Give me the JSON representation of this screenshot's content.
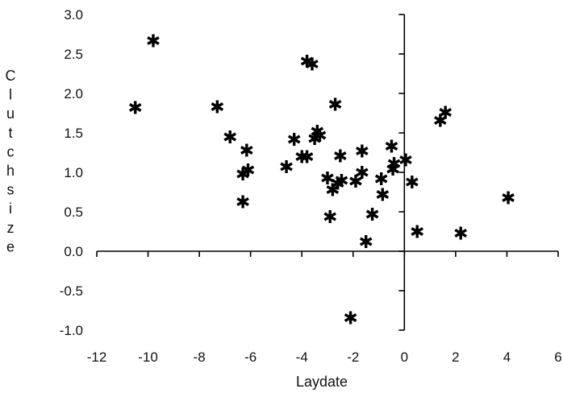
{
  "chart_data": {
    "type": "scatter",
    "xlabel": "Laydate",
    "ylabel": "Clutch size",
    "ylabel_letters": [
      "C",
      "l",
      "u",
      "t",
      "c",
      "h",
      "s",
      "i",
      "z",
      "e"
    ],
    "xlim": [
      -12,
      6
    ],
    "ylim": [
      -1.0,
      3.0
    ],
    "x_ticks": [
      -12,
      -10,
      -8,
      -6,
      -4,
      -2,
      0,
      2,
      4,
      6
    ],
    "x_tick_labels": [
      "-12",
      "-10",
      "-8",
      "-6",
      "-4",
      "-2",
      "0",
      "2",
      "4",
      "6"
    ],
    "y_ticks": [
      3.0,
      2.5,
      2.0,
      1.5,
      1.0,
      0.5,
      0.0,
      -0.5,
      -1.0
    ],
    "y_tick_labels": [
      "3.0",
      "2.5",
      "2.0",
      "1.5",
      "1.0",
      "0.5",
      "0.0",
      "-0.5",
      "-1.0"
    ],
    "grid": false,
    "marker": "✱",
    "points": [
      {
        "x": -10.5,
        "y": 1.82
      },
      {
        "x": -9.8,
        "y": 2.67
      },
      {
        "x": -7.3,
        "y": 1.83
      },
      {
        "x": -6.8,
        "y": 1.45
      },
      {
        "x": -6.3,
        "y": 0.98
      },
      {
        "x": -6.3,
        "y": 0.63
      },
      {
        "x": -6.15,
        "y": 1.28
      },
      {
        "x": -6.1,
        "y": 1.03
      },
      {
        "x": -4.6,
        "y": 1.07
      },
      {
        "x": -4.3,
        "y": 1.42
      },
      {
        "x": -4.0,
        "y": 1.2
      },
      {
        "x": -3.8,
        "y": 1.2
      },
      {
        "x": -3.8,
        "y": 2.41
      },
      {
        "x": -3.6,
        "y": 2.37
      },
      {
        "x": -3.5,
        "y": 1.43
      },
      {
        "x": -3.4,
        "y": 1.52
      },
      {
        "x": -3.3,
        "y": 1.47
      },
      {
        "x": -3.0,
        "y": 0.93
      },
      {
        "x": -2.9,
        "y": 0.44
      },
      {
        "x": -2.8,
        "y": 0.78
      },
      {
        "x": -2.7,
        "y": 1.86
      },
      {
        "x": -2.6,
        "y": 0.86
      },
      {
        "x": -2.5,
        "y": 1.21
      },
      {
        "x": -2.45,
        "y": 0.9
      },
      {
        "x": -2.1,
        "y": -0.84
      },
      {
        "x": -1.9,
        "y": 0.89
      },
      {
        "x": -1.65,
        "y": 1.0
      },
      {
        "x": -1.65,
        "y": 1.27
      },
      {
        "x": -1.5,
        "y": 0.12
      },
      {
        "x": -1.25,
        "y": 0.47
      },
      {
        "x": -0.9,
        "y": 0.92
      },
      {
        "x": -0.85,
        "y": 0.72
      },
      {
        "x": -0.5,
        "y": 1.33
      },
      {
        "x": -0.45,
        "y": 1.04
      },
      {
        "x": -0.4,
        "y": 1.11
      },
      {
        "x": 0.05,
        "y": 1.16
      },
      {
        "x": 0.3,
        "y": 0.88
      },
      {
        "x": 0.5,
        "y": 0.25
      },
      {
        "x": 1.4,
        "y": 1.66
      },
      {
        "x": 1.6,
        "y": 1.76
      },
      {
        "x": 2.2,
        "y": 0.23
      },
      {
        "x": 4.05,
        "y": 0.68
      }
    ]
  }
}
